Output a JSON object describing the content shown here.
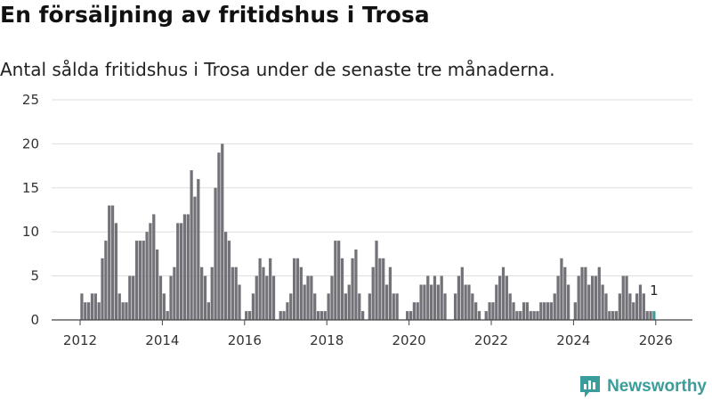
{
  "title": "En försäljning av fritidshus i Trosa",
  "subtitle": "Antal sålda fritidshus i Trosa under de senaste tre månaderna.",
  "brand": "Newsworthy",
  "colors": {
    "bar": "#737278",
    "highlight": "#3a9d9b",
    "grid": "#dddddd",
    "axis": "#444444"
  },
  "chart_data": {
    "type": "bar",
    "title": "En försäljning av fritidshus i Trosa",
    "subtitle": "Antal sålda fritidshus i Trosa under de senaste tre månaderna.",
    "xlabel": "",
    "ylabel": "",
    "ylim": [
      0,
      25
    ],
    "yticks": [
      0,
      5,
      10,
      15,
      20,
      25
    ],
    "xticks": [
      "2012",
      "2014",
      "2016",
      "2018",
      "2020",
      "2022",
      "2024",
      "2026"
    ],
    "start": "2012-01",
    "frequency": "monthly",
    "grid": true,
    "highlight_label": "1",
    "values": [
      3,
      2,
      2,
      3,
      3,
      2,
      7,
      9,
      13,
      13,
      11,
      3,
      2,
      2,
      5,
      5,
      9,
      9,
      9,
      10,
      11,
      12,
      8,
      5,
      3,
      1,
      5,
      6,
      11,
      11,
      12,
      12,
      17,
      14,
      16,
      6,
      5,
      2,
      6,
      15,
      19,
      20,
      10,
      9,
      6,
      6,
      4,
      0,
      1,
      1,
      3,
      5,
      7,
      6,
      5,
      7,
      5,
      0,
      1,
      1,
      2,
      3,
      7,
      7,
      6,
      4,
      5,
      5,
      3,
      1,
      1,
      1,
      3,
      5,
      9,
      9,
      7,
      3,
      4,
      7,
      8,
      3,
      1,
      0,
      3,
      6,
      9,
      7,
      7,
      4,
      6,
      3,
      3,
      0,
      0,
      1,
      1,
      2,
      2,
      4,
      4,
      5,
      4,
      5,
      4,
      5,
      3,
      0,
      0,
      3,
      5,
      6,
      4,
      4,
      3,
      2,
      1,
      0,
      1,
      2,
      2,
      4,
      5,
      6,
      5,
      3,
      2,
      1,
      1,
      2,
      2,
      1,
      1,
      1,
      2,
      2,
      2,
      2,
      3,
      5,
      7,
      6,
      4,
      0,
      2,
      5,
      6,
      6,
      4,
      5,
      5,
      6,
      4,
      3,
      1,
      1,
      1,
      3,
      5,
      5,
      3,
      2,
      3,
      4,
      3,
      1,
      1,
      1
    ]
  }
}
